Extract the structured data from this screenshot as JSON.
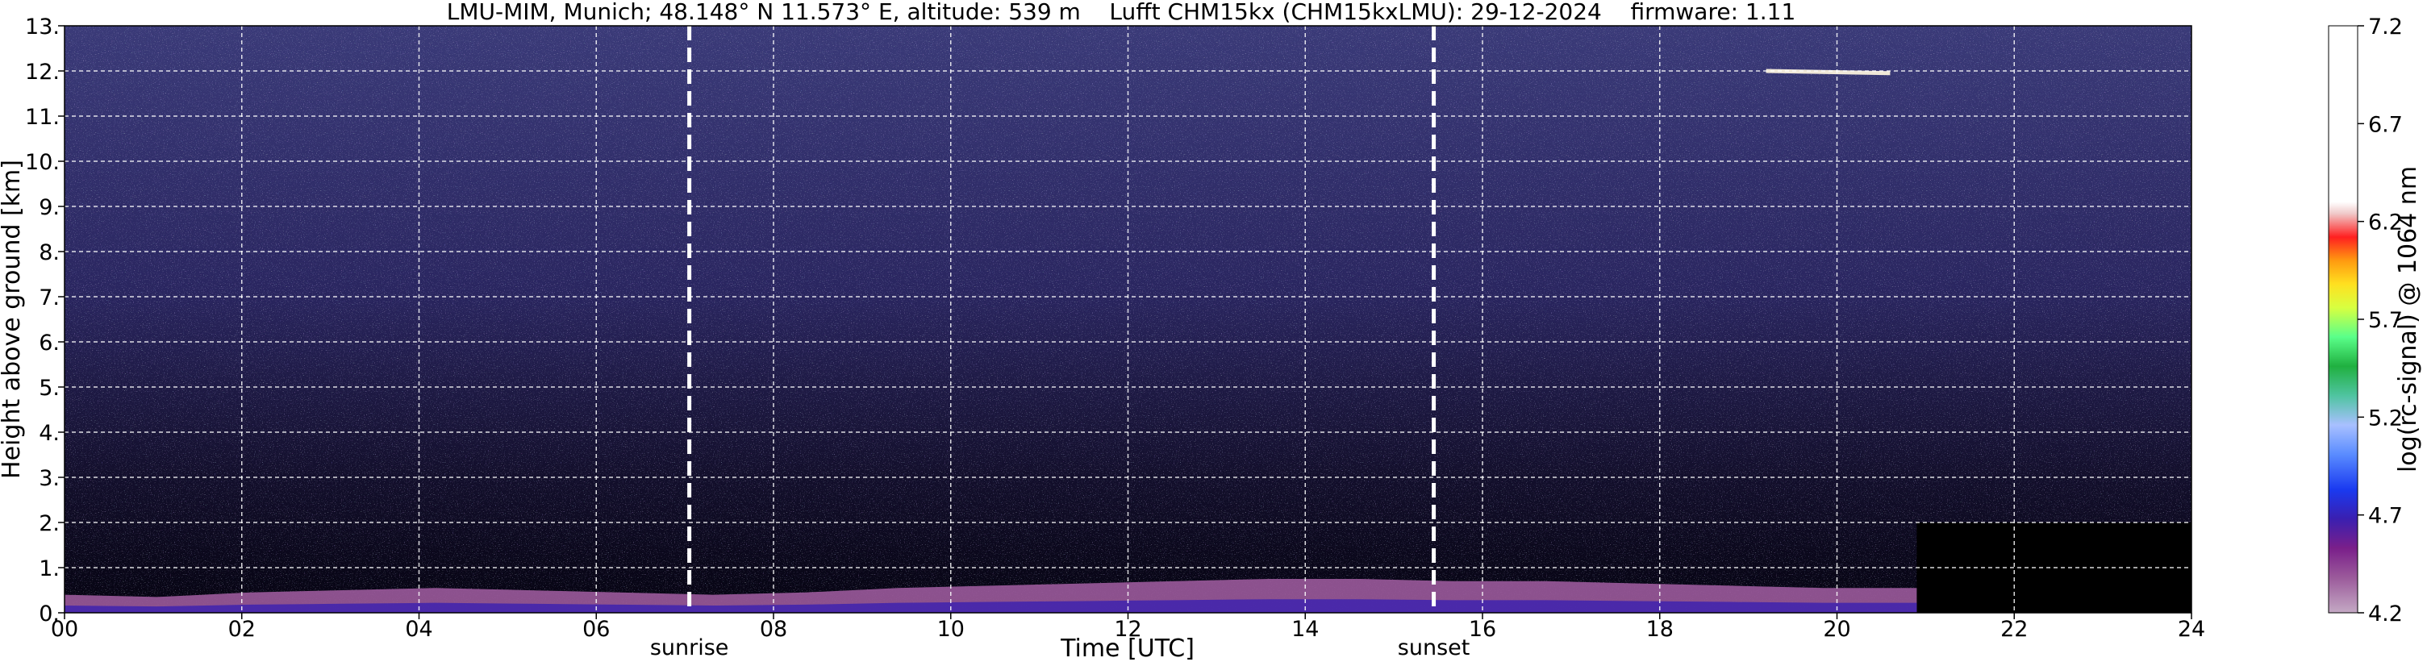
{
  "chart_data": {
    "type": "heatmap",
    "title": "LMU-MIM, Munich; 48.148° N 11.573° E, altitude: 539 m    Lufft CHM15kx (CHM15kxLMU): 29-12-2024    firmware: 1.11",
    "xlabel": "Time [UTC]",
    "ylabel": "Height above ground [km]",
    "xlim": [
      0,
      24
    ],
    "ylim": [
      0,
      13
    ],
    "x_ticks": [
      0,
      2,
      4,
      6,
      8,
      10,
      12,
      14,
      16,
      18,
      20,
      22,
      24
    ],
    "x_tick_labels": [
      "00",
      "02",
      "04",
      "06",
      "08",
      "10",
      "12",
      "14",
      "16",
      "18",
      "20",
      "22",
      "24"
    ],
    "y_ticks": [
      0,
      1,
      2,
      3,
      4,
      5,
      6,
      7,
      8,
      9,
      10,
      11,
      12,
      13
    ],
    "y_tick_labels": [
      "0.",
      "1.",
      "2.",
      "3.",
      "4.",
      "5.",
      "6.",
      "7.",
      "8.",
      "9.",
      "10.",
      "11.",
      "12.",
      "13."
    ],
    "grid": true,
    "colorbar": {
      "label": "log(rc-signal) @ 1064 nm",
      "range": [
        4.2,
        7.2
      ],
      "ticks": [
        4.2,
        4.7,
        5.2,
        5.7,
        6.2,
        6.7,
        7.2
      ],
      "tick_labels": [
        "4.2",
        "4.7",
        "5.2",
        "5.7",
        "6.2",
        "6.7",
        "7.2"
      ]
    },
    "events": [
      {
        "label": "sunrise",
        "x": 7.05
      },
      {
        "label": "sunset",
        "x": 15.45
      }
    ],
    "layers": [
      {
        "kind": "aerosol_boundary_layer",
        "x_start": 0,
        "x_end": 20.9,
        "height_top_km": [
          0.4,
          0.35,
          0.45,
          0.5,
          0.55,
          0.5,
          0.45,
          0.4,
          0.45,
          0.55,
          0.6,
          0.65,
          0.7,
          0.75,
          0.75,
          0.7,
          0.7,
          0.65,
          0.6,
          0.55,
          0.55
        ]
      },
      {
        "kind": "cirrus_cloud",
        "x_start": 19.2,
        "x_end": 20.6,
        "height_km": 11.95
      }
    ],
    "no_signal_region": {
      "x_start": 20.9,
      "x_end": 24
    }
  }
}
